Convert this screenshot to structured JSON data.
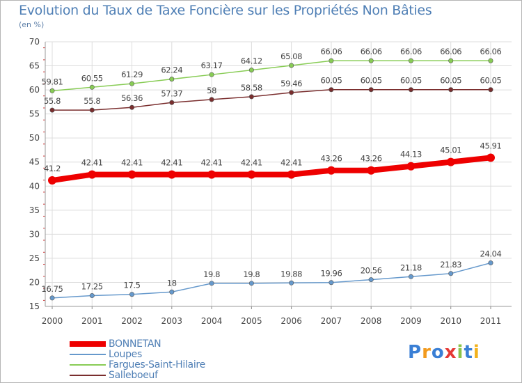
{
  "chart_data": {
    "type": "line",
    "title": "Evolution du Taux de Taxe Foncière sur les Propriétés Non Bâties",
    "ylabel": "(en %)",
    "xlabel": "",
    "x": [
      "2000",
      "2001",
      "2002",
      "2003",
      "2004",
      "2005",
      "2006",
      "2007",
      "2008",
      "2009",
      "2010",
      "2011"
    ],
    "ylim": [
      15,
      70
    ],
    "yticks": [
      15,
      20,
      25,
      30,
      35,
      40,
      45,
      50,
      55,
      60,
      65,
      70
    ],
    "series": [
      {
        "name": "BONNETAN",
        "color": "#ee0000",
        "emphasis": true,
        "values": [
          41.2,
          42.41,
          42.41,
          42.41,
          42.41,
          42.41,
          42.41,
          43.26,
          43.26,
          44.13,
          45.01,
          45.91
        ],
        "labels": [
          "41.2",
          "42.41",
          "42.41",
          "42.41",
          "42.41",
          "42.41",
          "42.41",
          "43.26",
          "43.26",
          "44.13",
          "45.01",
          "45.91"
        ]
      },
      {
        "name": "Loupes",
        "color": "#6699cc",
        "emphasis": false,
        "values": [
          16.75,
          17.25,
          17.5,
          18,
          19.8,
          19.8,
          19.88,
          19.96,
          20.56,
          21.18,
          21.83,
          24.04
        ],
        "labels": [
          "16.75",
          "17.25",
          "17.5",
          "18",
          "19.8",
          "19.8",
          "19.88",
          "19.96",
          "20.56",
          "21.18",
          "21.83",
          "24.04"
        ]
      },
      {
        "name": "Fargues-Saint-Hilaire",
        "color": "#88cc55",
        "emphasis": false,
        "values": [
          59.81,
          60.55,
          61.29,
          62.24,
          63.17,
          64.12,
          65.08,
          66.06,
          66.06,
          66.06,
          66.06,
          66.06
        ],
        "labels": [
          "59.81",
          "60.55",
          "61.29",
          "62.24",
          "63.17",
          "64.12",
          "65.08",
          "66.06",
          "66.06",
          "66.06",
          "66.06",
          "66.06"
        ]
      },
      {
        "name": "Salleboeuf",
        "color": "#7a2e2e",
        "emphasis": false,
        "values": [
          55.8,
          55.8,
          56.36,
          57.37,
          58,
          58.58,
          59.46,
          60.05,
          60.05,
          60.05,
          60.05,
          60.05
        ],
        "labels": [
          "55.8",
          "55.8",
          "56.36",
          "57.37",
          "58",
          "58.58",
          "59.46",
          "60.05",
          "60.05",
          "60.05",
          "60.05",
          "60.05"
        ]
      }
    ],
    "grid": true,
    "legend_position": "bottom-left"
  },
  "logo": {
    "text": "Proxiti",
    "letters": [
      "P",
      "r",
      "o",
      "x",
      "i",
      "t",
      "i"
    ],
    "colors": [
      "#3a7fd5",
      "#f29a1d",
      "#3a7fd5",
      "#e53935",
      "#8bc34a",
      "#3a7fd5",
      "#f2b21d"
    ]
  }
}
